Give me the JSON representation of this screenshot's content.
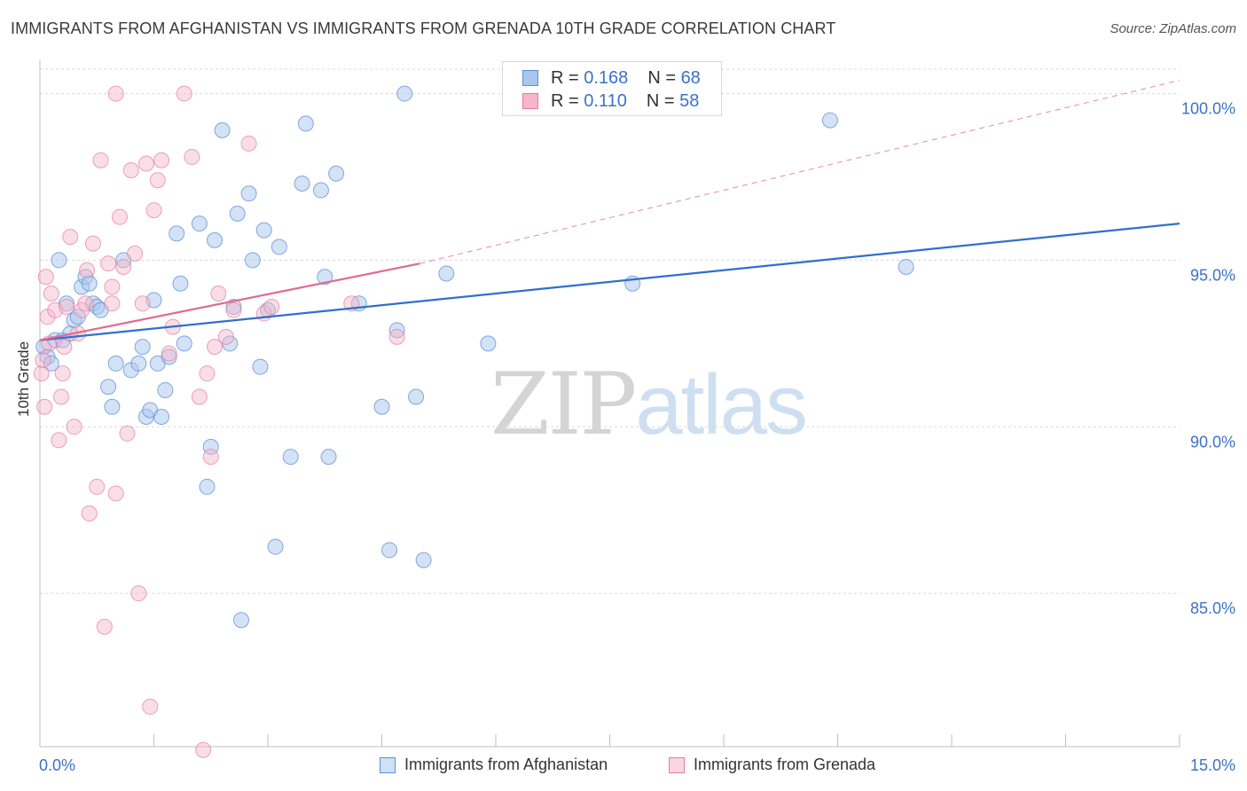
{
  "title": "IMMIGRANTS FROM AFGHANISTAN VS IMMIGRANTS FROM GRENADA 10TH GRADE CORRELATION CHART",
  "source": "Source: ZipAtlas.com",
  "watermark": {
    "zip": "ZIP",
    "atlas": "atlas"
  },
  "legend_top": {
    "rows": [
      {
        "r_label": "R =",
        "r_value": "0.168",
        "n_label": "N =",
        "n_value": "68"
      },
      {
        "r_label": "R =",
        "r_value": "0.110",
        "n_label": "N =",
        "n_value": "58"
      }
    ]
  },
  "colors": {
    "afghanistan_fill": "#a9c6ee",
    "afghanistan_stroke": "#5b8fd6",
    "afghanistan_line": "#2f6fcf",
    "grenada_fill": "#f5b6c9",
    "grenada_stroke": "#e77a9e",
    "grenada_line": "#e06a92",
    "tick_label": "#3b72c9",
    "grid": "#d9d9d9"
  },
  "chart_data": {
    "type": "scatter",
    "title": "IMMIGRANTS FROM AFGHANISTAN VS IMMIGRANTS FROM GRENADA 10TH GRADE CORRELATION CHART",
    "xlabel": "",
    "ylabel": "10th Grade",
    "xlim": [
      0,
      15
    ],
    "ylim": [
      80.4,
      101.0
    ],
    "x_tick_labels": [
      "0.0%",
      "15.0%"
    ],
    "y_ticks": [
      85,
      90,
      95,
      100
    ],
    "y_tick_labels": [
      "85.0%",
      "90.0%",
      "95.0%",
      "100.0%"
    ],
    "grid": true,
    "legend_position": "bottom",
    "series": [
      {
        "name": "Immigrants from Afghanistan",
        "r": 0.168,
        "n": 68,
        "trend": {
          "x": [
            0,
            15
          ],
          "y": [
            92.6,
            96.1
          ],
          "style": "solid"
        },
        "points": [
          [
            0.05,
            92.4
          ],
          [
            0.1,
            92.1
          ],
          [
            0.15,
            91.9
          ],
          [
            0.2,
            92.6
          ],
          [
            0.25,
            95.0
          ],
          [
            0.3,
            92.6
          ],
          [
            0.35,
            93.7
          ],
          [
            0.4,
            92.8
          ],
          [
            0.45,
            93.2
          ],
          [
            0.5,
            93.3
          ],
          [
            0.55,
            94.2
          ],
          [
            0.6,
            94.5
          ],
          [
            0.65,
            94.3
          ],
          [
            0.7,
            93.7
          ],
          [
            0.75,
            93.6
          ],
          [
            0.8,
            93.5
          ],
          [
            0.9,
            91.2
          ],
          [
            0.95,
            90.6
          ],
          [
            1.0,
            91.9
          ],
          [
            1.1,
            95.0
          ],
          [
            1.2,
            91.7
          ],
          [
            1.3,
            91.9
          ],
          [
            1.35,
            92.4
          ],
          [
            1.4,
            90.3
          ],
          [
            1.45,
            90.5
          ],
          [
            1.5,
            93.8
          ],
          [
            1.55,
            91.9
          ],
          [
            1.6,
            90.3
          ],
          [
            1.65,
            91.1
          ],
          [
            1.7,
            92.1
          ],
          [
            1.8,
            95.8
          ],
          [
            1.85,
            94.3
          ],
          [
            1.9,
            92.5
          ],
          [
            2.1,
            96.1
          ],
          [
            2.2,
            88.2
          ],
          [
            2.25,
            89.4
          ],
          [
            2.3,
            95.6
          ],
          [
            2.4,
            98.9
          ],
          [
            2.5,
            92.5
          ],
          [
            2.55,
            93.6
          ],
          [
            2.6,
            96.4
          ],
          [
            2.65,
            84.2
          ],
          [
            2.75,
            97.0
          ],
          [
            2.8,
            95.0
          ],
          [
            2.9,
            91.8
          ],
          [
            2.95,
            95.9
          ],
          [
            3.0,
            93.5
          ],
          [
            3.1,
            86.4
          ],
          [
            3.15,
            95.4
          ],
          [
            3.3,
            89.1
          ],
          [
            3.45,
            97.3
          ],
          [
            3.5,
            99.1
          ],
          [
            3.7,
            97.1
          ],
          [
            3.75,
            94.5
          ],
          [
            3.8,
            89.1
          ],
          [
            3.9,
            97.6
          ],
          [
            4.2,
            93.7
          ],
          [
            4.5,
            90.6
          ],
          [
            4.6,
            86.3
          ],
          [
            4.7,
            92.9
          ],
          [
            4.8,
            100.0
          ],
          [
            4.95,
            90.9
          ],
          [
            5.05,
            86.0
          ],
          [
            5.35,
            94.6
          ],
          [
            5.9,
            92.5
          ],
          [
            7.8,
            94.3
          ],
          [
            10.4,
            99.2
          ],
          [
            11.4,
            94.8
          ]
        ]
      },
      {
        "name": "Immigrants from Grenada",
        "r": 0.11,
        "n": 58,
        "trend": {
          "x": [
            0,
            5.0
          ],
          "y": [
            92.6,
            94.9
          ],
          "style": "solid"
        },
        "trend_extension": {
          "x": [
            5.0,
            15
          ],
          "y": [
            94.9,
            100.4
          ],
          "style": "dashed"
        },
        "points": [
          [
            0.02,
            91.6
          ],
          [
            0.04,
            92.0
          ],
          [
            0.06,
            90.6
          ],
          [
            0.08,
            94.5
          ],
          [
            0.1,
            93.3
          ],
          [
            0.12,
            92.5
          ],
          [
            0.15,
            94.0
          ],
          [
            0.2,
            93.5
          ],
          [
            0.25,
            89.6
          ],
          [
            0.28,
            90.9
          ],
          [
            0.3,
            91.6
          ],
          [
            0.32,
            92.4
          ],
          [
            0.35,
            93.6
          ],
          [
            0.4,
            95.7
          ],
          [
            0.45,
            90.0
          ],
          [
            0.5,
            92.8
          ],
          [
            0.55,
            93.5
          ],
          [
            0.6,
            93.7
          ],
          [
            0.62,
            94.7
          ],
          [
            0.65,
            87.4
          ],
          [
            0.7,
            95.5
          ],
          [
            0.75,
            88.2
          ],
          [
            0.8,
            98.0
          ],
          [
            0.85,
            84.0
          ],
          [
            0.9,
            94.9
          ],
          [
            0.95,
            93.7
          ],
          [
            1.0,
            88.0
          ],
          [
            1.05,
            96.3
          ],
          [
            1.1,
            94.8
          ],
          [
            1.15,
            89.8
          ],
          [
            1.2,
            97.7
          ],
          [
            1.25,
            95.2
          ],
          [
            1.3,
            85.0
          ],
          [
            1.35,
            93.7
          ],
          [
            1.4,
            97.9
          ],
          [
            1.45,
            81.6
          ],
          [
            1.5,
            96.5
          ],
          [
            1.55,
            97.4
          ],
          [
            1.6,
            98.0
          ],
          [
            1.7,
            92.2
          ],
          [
            1.75,
            93.0
          ],
          [
            1.9,
            100.0
          ],
          [
            2.0,
            98.1
          ],
          [
            2.1,
            90.9
          ],
          [
            2.15,
            80.3
          ],
          [
            2.2,
            91.6
          ],
          [
            2.25,
            89.1
          ],
          [
            2.3,
            92.4
          ],
          [
            2.35,
            94.0
          ],
          [
            2.45,
            92.7
          ],
          [
            2.55,
            93.5
          ],
          [
            2.75,
            98.5
          ],
          [
            2.95,
            93.4
          ],
          [
            3.05,
            93.6
          ],
          [
            4.1,
            93.7
          ],
          [
            4.7,
            92.7
          ],
          [
            1.0,
            100.0
          ],
          [
            0.95,
            94.2
          ]
        ]
      }
    ]
  },
  "bottom_legend": [
    "Immigrants from Afghanistan",
    "Immigrants from Grenada"
  ]
}
